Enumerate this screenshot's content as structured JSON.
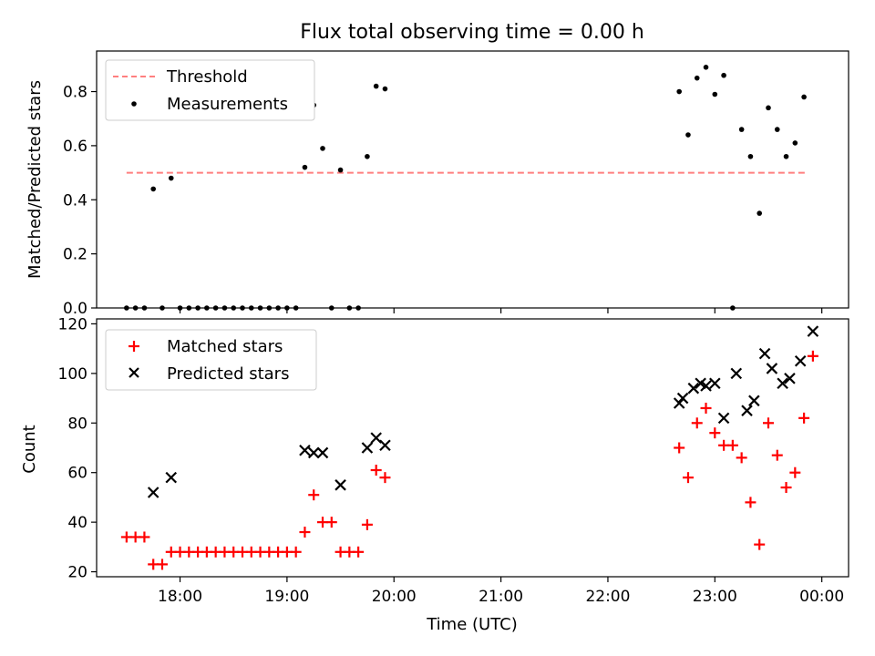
{
  "chart_data": [
    {
      "type": "scatter",
      "title": "Flux total observing time = 0.00 h",
      "xlabel": "",
      "ylabel": "Matched/Predicted stars",
      "xlim_hours": [
        17.22,
        24.25
      ],
      "ylim": [
        0,
        0.95
      ],
      "yticks": [
        0.0,
        0.2,
        0.4,
        0.6,
        0.8
      ],
      "ytick_labels": [
        "0.0",
        "0.2",
        "0.4",
        "0.6",
        "0.8"
      ],
      "legend_position": "upper-left",
      "legend": [
        {
          "label": "Threshold",
          "style": "dashed-line",
          "color": "#ff7f7f"
        },
        {
          "label": "Measurements",
          "style": "dot",
          "color": "#000000"
        }
      ],
      "threshold": {
        "name": "Threshold",
        "y": 0.5,
        "x_range": [
          "17:30",
          "23:52"
        ]
      },
      "series": [
        {
          "name": "Measurements",
          "x": [
            "17:30",
            "17:35",
            "17:40",
            "17:45",
            "17:50",
            "17:55",
            "18:00",
            "18:05",
            "18:10",
            "18:15",
            "18:20",
            "18:25",
            "18:30",
            "18:35",
            "18:40",
            "18:45",
            "18:50",
            "18:55",
            "19:00",
            "19:05",
            "19:10",
            "19:15",
            "19:20",
            "19:25",
            "19:30",
            "19:35",
            "19:40",
            "19:45",
            "19:50",
            "19:55",
            "22:40",
            "22:45",
            "22:50",
            "22:55",
            "23:00",
            "23:05",
            "23:10",
            "23:15",
            "23:20",
            "23:25",
            "23:30",
            "23:35",
            "23:40",
            "23:45",
            "23:50"
          ],
          "y": [
            0.0,
            0.0,
            0.0,
            0.44,
            0.0,
            0.48,
            0.0,
            0.0,
            0.0,
            0.0,
            0.0,
            0.0,
            0.0,
            0.0,
            0.0,
            0.0,
            0.0,
            0.0,
            0.0,
            0.0,
            0.52,
            0.75,
            0.59,
            0.0,
            0.51,
            0.0,
            0.0,
            0.56,
            0.82,
            0.81,
            0.8,
            0.64,
            0.85,
            0.89,
            0.79,
            0.86,
            0.0,
            0.66,
            0.56,
            0.35,
            0.74,
            0.66,
            0.56,
            0.61,
            0.78
          ]
        }
      ]
    },
    {
      "type": "scatter",
      "title": "",
      "xlabel": "Time (UTC)",
      "ylabel": "Count",
      "xlim_hours": [
        17.22,
        24.25
      ],
      "ylim": [
        18,
        122
      ],
      "yticks": [
        20,
        40,
        60,
        80,
        100,
        120
      ],
      "xticks": [
        "18:00",
        "19:00",
        "20:00",
        "21:00",
        "22:00",
        "23:00",
        "00:00"
      ],
      "legend_position": "upper-left",
      "legend": [
        {
          "label": "Matched stars",
          "style": "plus",
          "color": "#ff0000"
        },
        {
          "label": "Predicted stars",
          "style": "x",
          "color": "#000000"
        }
      ],
      "series": [
        {
          "name": "Matched stars",
          "x": [
            "17:30",
            "17:35",
            "17:40",
            "17:45",
            "17:50",
            "17:55",
            "18:00",
            "18:05",
            "18:10",
            "18:15",
            "18:20",
            "18:25",
            "18:30",
            "18:35",
            "18:40",
            "18:45",
            "18:50",
            "18:55",
            "19:00",
            "19:05",
            "19:10",
            "19:15",
            "19:20",
            "19:25",
            "19:30",
            "19:35",
            "19:40",
            "19:45",
            "19:50",
            "19:55",
            "22:40",
            "22:45",
            "22:50",
            "22:55",
            "23:00",
            "23:05",
            "23:10",
            "23:15",
            "23:20",
            "23:25",
            "23:30",
            "23:35",
            "23:40",
            "23:45",
            "23:50",
            "23:55"
          ],
          "y": [
            34,
            34,
            34,
            23,
            23,
            28,
            28,
            28,
            28,
            28,
            28,
            28,
            28,
            28,
            28,
            28,
            28,
            28,
            28,
            28,
            36,
            51,
            40,
            40,
            28,
            28,
            28,
            39,
            61,
            58,
            70,
            58,
            80,
            86,
            76,
            71,
            71,
            66,
            48,
            31,
            80,
            67,
            54,
            60,
            82,
            107
          ]
        },
        {
          "name": "Predicted stars",
          "x": [
            "17:45",
            "17:55",
            "19:10",
            "19:15",
            "19:20",
            "19:30",
            "19:45",
            "19:50",
            "19:55",
            "22:40",
            "22:42",
            "22:48",
            "22:52",
            "22:55",
            "23:00",
            "23:05",
            "23:12",
            "23:18",
            "23:22",
            "23:28",
            "23:32",
            "23:38",
            "23:42",
            "23:48",
            "23:55"
          ],
          "y": [
            52,
            58,
            69,
            68,
            68,
            55,
            70,
            74,
            71,
            88,
            90,
            94,
            96,
            95,
            96,
            82,
            100,
            85,
            89,
            108,
            102,
            96,
            98,
            105,
            117
          ]
        }
      ]
    }
  ]
}
